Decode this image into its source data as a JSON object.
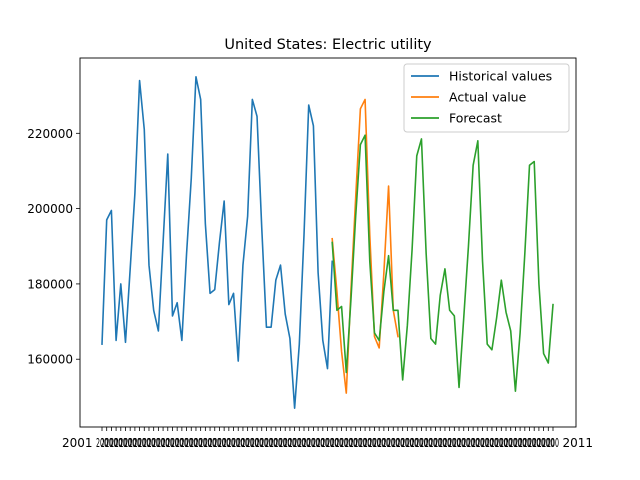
{
  "chart_data": {
    "type": "line",
    "title": "United States: Electric utility",
    "xlabel": "",
    "ylabel": "",
    "ylim": [
      142000,
      240000
    ],
    "yticks": [
      160000,
      180000,
      200000,
      220000
    ],
    "ytick_labels": [
      "160000",
      "180000",
      "200000",
      "220000"
    ],
    "xtick_label_start": "2001",
    "xtick_label_end": "2011",
    "grid": false,
    "legend_position": "upper right",
    "series": [
      {
        "name": "Historical values",
        "color": "#1f77b4",
        "start_index": 0,
        "values": [
          164000,
          197000,
          199500,
          165000,
          180000,
          164500,
          184000,
          204000,
          234000,
          221000,
          185000,
          173000,
          167500,
          191000,
          214500,
          171500,
          175000,
          165000,
          188000,
          208000,
          235000,
          229000,
          196000,
          177500,
          178500,
          191000,
          202000,
          174500,
          177500,
          159500,
          185000,
          198000,
          229000,
          224500,
          195000,
          168500,
          168500,
          181000,
          185000,
          172000,
          165500,
          147000,
          164000,
          193000,
          227500,
          222000,
          183000,
          165000,
          157500,
          186000
        ]
      },
      {
        "name": "Actual value",
        "color": "#ff7f0e",
        "start_index": 49,
        "values": [
          192000,
          178000,
          162000,
          151000,
          178500,
          203000,
          226500,
          229000,
          193000,
          166000,
          163000,
          183000,
          206000,
          173000,
          166000
        ]
      },
      {
        "name": "Forecast",
        "color": "#2ca02c",
        "start_index": 49,
        "values": [
          191000,
          173000,
          174000,
          156500,
          176000,
          198000,
          217000,
          219500,
          186000,
          167000,
          165000,
          178000,
          187500,
          173000,
          173000,
          154500,
          169000,
          189000,
          214000,
          218500,
          188000,
          165500,
          164000,
          177000,
          184000,
          173000,
          171500,
          152500,
          171000,
          190000,
          211500,
          218000,
          186000,
          164000,
          162500,
          171000,
          181000,
          172500,
          167500,
          151500,
          167000,
          188000,
          211500,
          212500,
          180000,
          161500,
          159000,
          174500
        ]
      }
    ]
  }
}
